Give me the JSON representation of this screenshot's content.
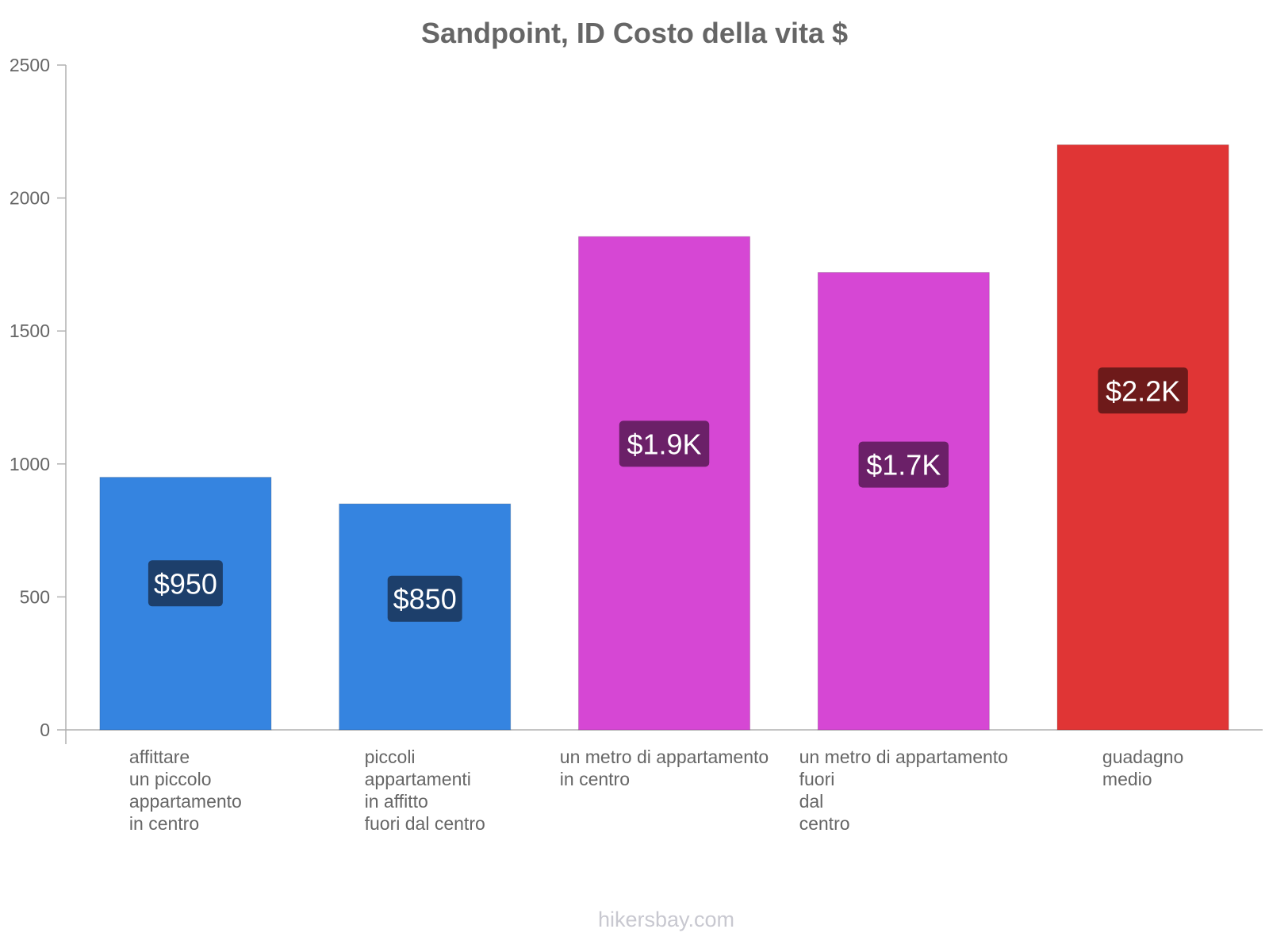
{
  "chart_data": {
    "type": "bar",
    "title": "Sandpoint, ID Costo della vita $",
    "xlabel": "",
    "ylabel": "",
    "ylim": [
      0,
      2500
    ],
    "yticks": [
      0,
      500,
      1000,
      1500,
      2000,
      2500
    ],
    "categories": [
      [
        "affittare",
        "un piccolo",
        "appartamento",
        "in centro"
      ],
      [
        "piccoli",
        "appartamenti",
        "in affitto",
        "fuori dal centro"
      ],
      [
        "un metro di appartamento",
        "in centro"
      ],
      [
        "un metro di appartamento",
        "fuori",
        "dal",
        "centro"
      ],
      [
        "guadagno",
        "medio"
      ]
    ],
    "values": [
      950,
      850,
      1855,
      1720,
      2200
    ],
    "value_labels": [
      "$950",
      "$850",
      "$1.9K",
      "$1.7K",
      "$2.2K"
    ],
    "bar_colors": [
      "#3584e0",
      "#3584e0",
      "#d647d4",
      "#d647d4",
      "#e03535"
    ],
    "label_bg_colors": [
      "#1d3f6b",
      "#1d3f6b",
      "#6b2068",
      "#6b2068",
      "#6e1a1a"
    ],
    "grid": false,
    "legend": "none"
  },
  "watermark": "hikersbay.com"
}
